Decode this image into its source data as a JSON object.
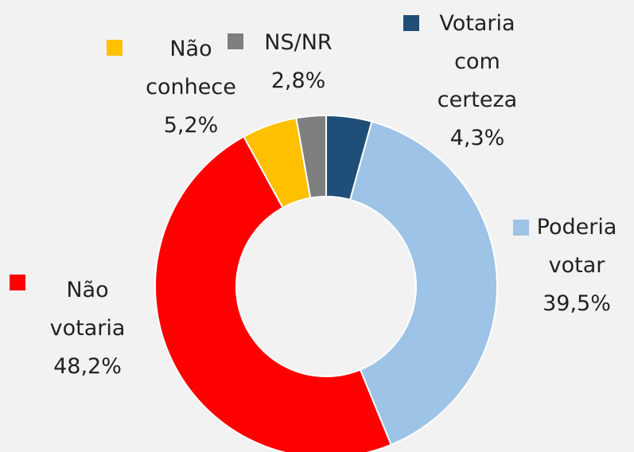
{
  "chart_data": {
    "type": "donut",
    "categories": [
      "Votaria com certeza",
      "Poderia votar",
      "Não votaria",
      "Não conhece",
      "NS/NR"
    ],
    "values": [
      4.3,
      39.5,
      48.2,
      5.2,
      2.8
    ],
    "value_labels": [
      "4,3%",
      "39,5%",
      "48,2%",
      "5,2%",
      "2,8%"
    ],
    "colors": [
      "#1f4e79",
      "#9dc3e6",
      "#ff0000",
      "#ffc000",
      "#7f7f7f"
    ]
  }
}
